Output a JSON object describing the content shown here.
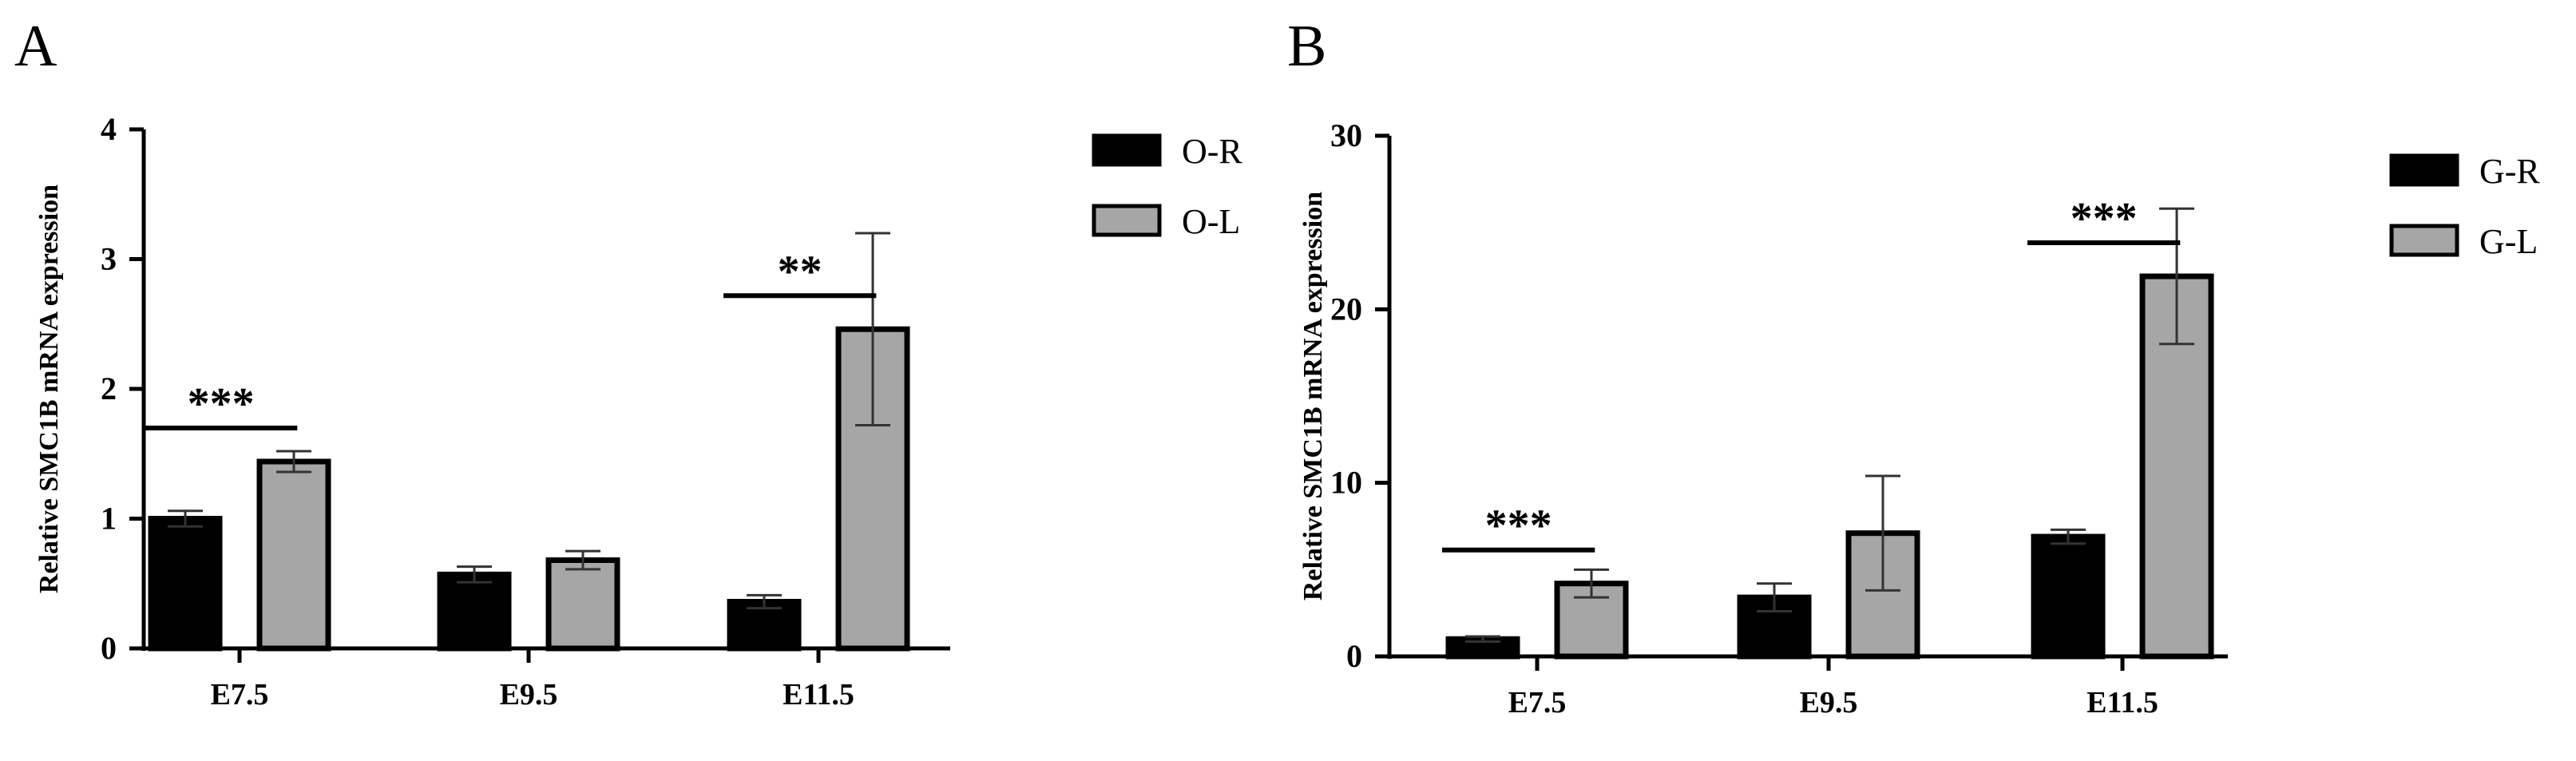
{
  "chart_data": [
    {
      "panel_label": "A",
      "type": "bar",
      "categories": [
        "E7.5",
        "E9.5",
        "E11.5"
      ],
      "ylabel": "Relative SMC1B mRNA expression",
      "ylim": [
        0,
        4
      ],
      "yticks": [
        "0",
        "1",
        "2",
        "3",
        "4"
      ],
      "series": [
        {
          "name": "O-R",
          "color": "#000000",
          "values": [
            1.0,
            0.57,
            0.36
          ],
          "errors": [
            0.06,
            0.06,
            0.05
          ]
        },
        {
          "name": "O-L",
          "color": "#a6a6a6",
          "values": [
            1.44,
            0.68,
            2.46
          ],
          "errors": [
            0.08,
            0.07,
            0.74
          ]
        }
      ],
      "significance": [
        {
          "category": "E7.5",
          "label": "***"
        },
        {
          "category": "E11.5",
          "label": "**"
        }
      ],
      "legend_position": "right"
    },
    {
      "panel_label": "B",
      "type": "bar",
      "categories": [
        "E7.5",
        "E9.5",
        "E11.5"
      ],
      "ylabel": "Relative SMC1B mRNA expression",
      "ylim": [
        0,
        30
      ],
      "yticks": [
        "0",
        "10",
        "20",
        "30"
      ],
      "series": [
        {
          "name": "G-R",
          "color": "#000000",
          "values": [
            1.0,
            3.4,
            6.9
          ],
          "errors": [
            0.15,
            0.8,
            0.4
          ]
        },
        {
          "name": "G-L",
          "color": "#a6a6a6",
          "values": [
            4.2,
            7.1,
            21.9
          ],
          "errors": [
            0.8,
            3.3,
            3.9
          ]
        }
      ],
      "significance": [
        {
          "category": "E7.5",
          "label": "***"
        },
        {
          "category": "E11.5",
          "label": "***"
        }
      ],
      "legend_position": "right"
    }
  ]
}
